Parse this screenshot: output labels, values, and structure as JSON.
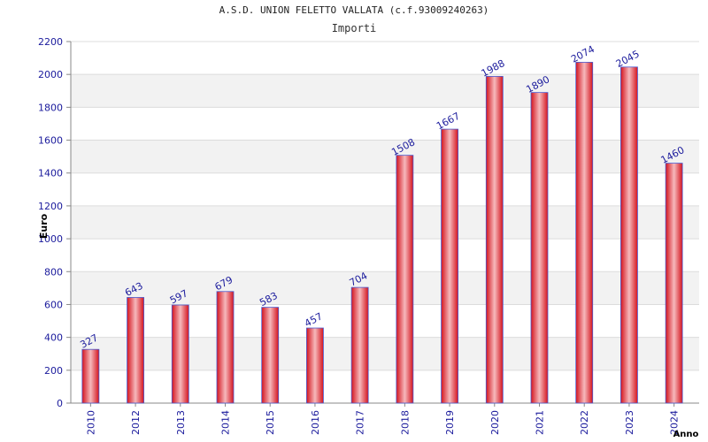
{
  "chart_data": {
    "type": "bar",
    "title": "A.S.D. UNION FELETTO VALLATA (c.f.93009240263)",
    "subtitle": "Importi",
    "xlabel": "Anno",
    "ylabel": "Euro",
    "ylim": [
      0,
      2200
    ],
    "yticks": [
      0,
      200,
      400,
      600,
      800,
      1000,
      1200,
      1400,
      1600,
      1800,
      2000,
      2200
    ],
    "grid": true,
    "categories": [
      "2010",
      "2012",
      "2013",
      "2014",
      "2015",
      "2016",
      "2017",
      "2018",
      "2019",
      "2020",
      "2021",
      "2022",
      "2023",
      "2024"
    ],
    "values": [
      327,
      643,
      597,
      679,
      583,
      457,
      704,
      1508,
      1667,
      1988,
      1890,
      2074,
      2045,
      1460
    ],
    "colors": {
      "bar": "#e8202a",
      "bar_highlight": "#f6b9bc",
      "bar_edge": "#4a5ad0",
      "axis_text": "#1a1a9c",
      "band": "#f2f2f2"
    }
  }
}
